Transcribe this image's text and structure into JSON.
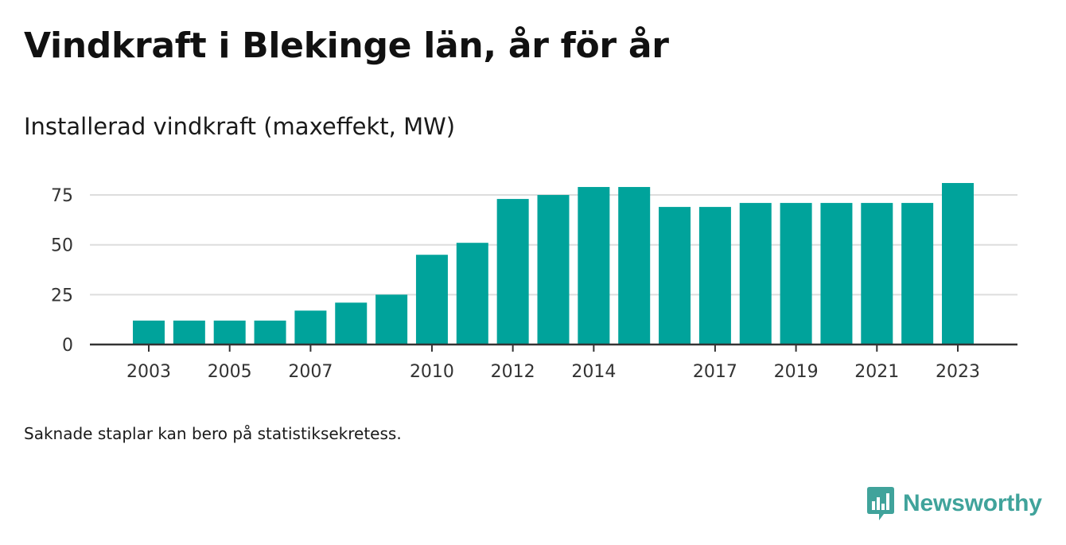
{
  "title": "Vindkraft i Blekinge län, år för år",
  "subtitle": "Installerad vindkraft (maxeffekt, MW)",
  "footnote": "Saknade staplar kan bero på statistiksekretess.",
  "logo": {
    "name": "Newsworthy",
    "icon": "newsworthy-bar-chart-bubble-icon",
    "color": "#40a39b"
  },
  "colors": {
    "bar": "#00a39b",
    "grid": "#dddddd",
    "axis": "#333333"
  },
  "chart_data": {
    "type": "bar",
    "categories": [
      "2003",
      "2004",
      "2005",
      "2006",
      "2007",
      "2008",
      "2009",
      "2010",
      "2011",
      "2012",
      "2013",
      "2014",
      "2015",
      "2016",
      "2017",
      "2018",
      "2019",
      "2020",
      "2021",
      "2022",
      "2023"
    ],
    "values": [
      12,
      12,
      12,
      12,
      17,
      21,
      25,
      45,
      51,
      73,
      75,
      79,
      79,
      69,
      69,
      71,
      71,
      71,
      71,
      71,
      81
    ],
    "xtick_labels": [
      "2003",
      "2005",
      "2007",
      "2010",
      "2012",
      "2014",
      "2017",
      "2019",
      "2021",
      "2023"
    ],
    "yticks": [
      0,
      25,
      50,
      75
    ],
    "ylim": [
      0,
      85
    ],
    "grid": true
  }
}
